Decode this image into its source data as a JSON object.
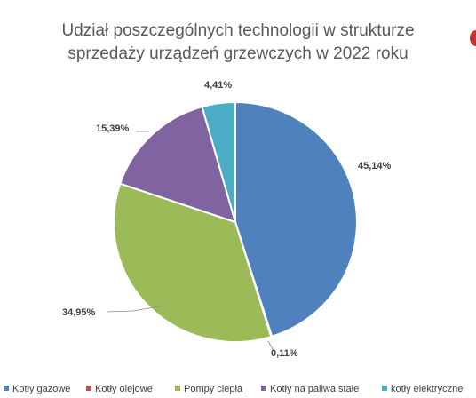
{
  "chart_data": {
    "type": "pie",
    "title": [
      "Udział poszczególnych technologii w strukturze",
      "sprzedaży urządzeń grzewczych w 2022 roku"
    ],
    "slices": [
      {
        "name": "Kotły gazowe",
        "value": 45.14,
        "label": "45,14%",
        "color": "#4f81bd"
      },
      {
        "name": "Kotły olejowe",
        "value": 0.11,
        "label": "0,11%",
        "color": "#c0504d"
      },
      {
        "name": "Pompy ciepła",
        "value": 34.95,
        "label": "34,95%",
        "color": "#9bbb59"
      },
      {
        "name": "Kotły na paliwa stałe",
        "value": 15.39,
        "label": "15,39%",
        "color": "#8064a2"
      },
      {
        "name": "kotły elektryczne",
        "value": 4.41,
        "label": "4,41%",
        "color": "#4bacc6"
      }
    ],
    "legend_position": "bottom",
    "start_angle": "12 o'clock, clockwise"
  }
}
